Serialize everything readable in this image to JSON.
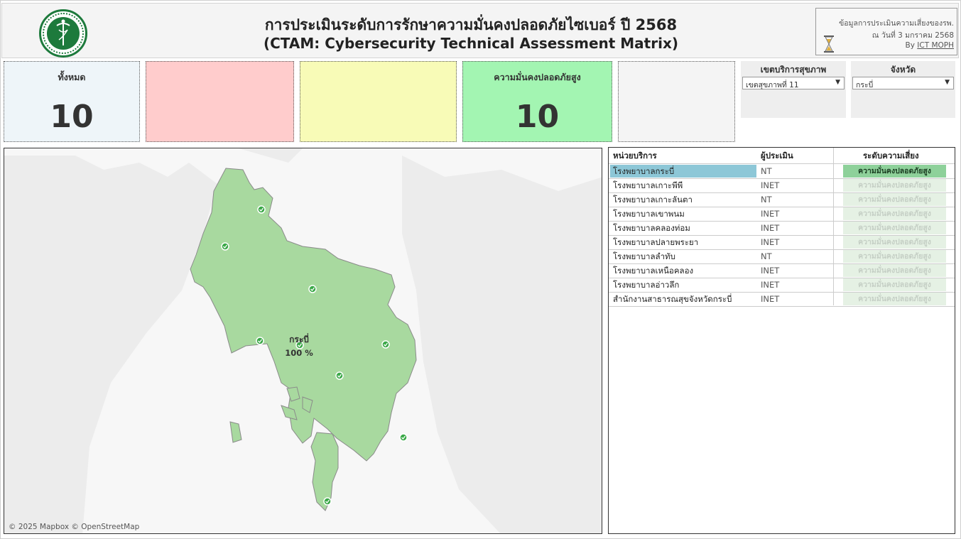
{
  "header": {
    "title_line1": "การประเมินระดับการรักษาความมั่นคงปลอดภัยไซเบอร์ ปี 2568",
    "title_line2": "(CTAM: Cybersecurity Technical Assessment Matrix)",
    "logo": "ministry-of-public-health-seal",
    "info_line1": "ข้อมูลการประเมินความเสี่ยงของรพ.",
    "info_line2": "ณ วันที่ 3 มกราคม 2568",
    "info_by": "By",
    "info_link": "ICT MOPH"
  },
  "kpis": {
    "total_label": "ทั้งหมด",
    "total_value": "10",
    "high_security_label": "ความมั่นคงปลอดภัยสูง",
    "high_security_value": "10",
    "colors": {
      "total": "#eef5f9",
      "red": "#ffcccc",
      "yellow": "#f8fbb7",
      "green": "#a3f5b2",
      "blank": "#f4f4f4"
    }
  },
  "filters": {
    "region_label": "เขตบริการสุขภาพ",
    "region_value": "เขตสุขภาพที่ 11",
    "province_label": "จังหวัด",
    "province_value": "กระบี่"
  },
  "map": {
    "province_name": "กระบี่",
    "province_percent": "100 %",
    "attribution": "© 2025 Mapbox  © OpenStreetMap",
    "fill_color": "#a8d99f",
    "marker_color": "#3aa847"
  },
  "table": {
    "headers": {
      "unit": "หน่วยบริการ",
      "assessor": "ผู้ประเมิน",
      "risk": "ระดับความเสี่ยง"
    },
    "rows": [
      {
        "unit": "โรงพยาบาลกระบี่",
        "assessor": "NT",
        "risk": "ความมั่นคงปลอดภัยสูง"
      },
      {
        "unit": "โรงพยาบาลเกาะพีพี",
        "assessor": "INET",
        "risk": "ความมั่นคงปลอดภัยสูง"
      },
      {
        "unit": "โรงพยาบาลเกาะลันตา",
        "assessor": "NT",
        "risk": "ความมั่นคงปลอดภัยสูง"
      },
      {
        "unit": "โรงพยาบาลเขาพนม",
        "assessor": "INET",
        "risk": "ความมั่นคงปลอดภัยสูง"
      },
      {
        "unit": "โรงพยาบาลคลองท่อม",
        "assessor": "INET",
        "risk": "ความมั่นคงปลอดภัยสูง"
      },
      {
        "unit": "โรงพยาบาลปลายพระยา",
        "assessor": "INET",
        "risk": "ความมั่นคงปลอดภัยสูง"
      },
      {
        "unit": "โรงพยาบาลลำทับ",
        "assessor": "NT",
        "risk": "ความมั่นคงปลอดภัยสูง"
      },
      {
        "unit": "โรงพยาบาลเหนือคลอง",
        "assessor": "INET",
        "risk": "ความมั่นคงปลอดภัยสูง"
      },
      {
        "unit": "โรงพยาบาลอ่าวลึก",
        "assessor": "INET",
        "risk": "ความมั่นคงปลอดภัยสูง"
      },
      {
        "unit": "สำนักงานสาธารณสุขจังหวัดกระบี่",
        "assessor": "INET",
        "risk": "ความมั่นคงปลอดภัยสูง"
      }
    ]
  }
}
